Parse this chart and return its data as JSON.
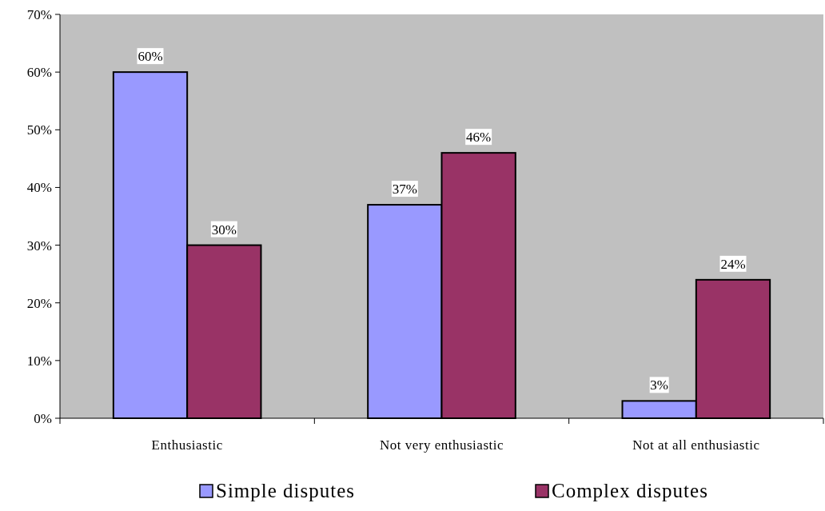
{
  "chart_data": {
    "type": "bar",
    "categories": [
      "Enthusiastic",
      "Not very enthusiastic",
      "Not at all enthusiastic"
    ],
    "series": [
      {
        "name": "Simple disputes",
        "color": "#9999ff",
        "values": [
          60,
          37,
          3
        ],
        "value_labels": [
          "60%",
          "37%",
          "3%"
        ]
      },
      {
        "name": "Complex disputes",
        "color": "#993366",
        "values": [
          30,
          46,
          24
        ],
        "value_labels": [
          "30%",
          "46%",
          "24%"
        ]
      }
    ],
    "ylim": [
      0,
      70
    ],
    "yticks": [
      {
        "value": 0,
        "label": "0%"
      },
      {
        "value": 10,
        "label": "10%"
      },
      {
        "value": 20,
        "label": "20%"
      },
      {
        "value": 30,
        "label": "30%"
      },
      {
        "value": 40,
        "label": "40%"
      },
      {
        "value": 50,
        "label": "50%"
      },
      {
        "value": 60,
        "label": "60%"
      },
      {
        "value": 70,
        "label": "70%"
      }
    ],
    "grid": false,
    "legend": "bottom"
  }
}
